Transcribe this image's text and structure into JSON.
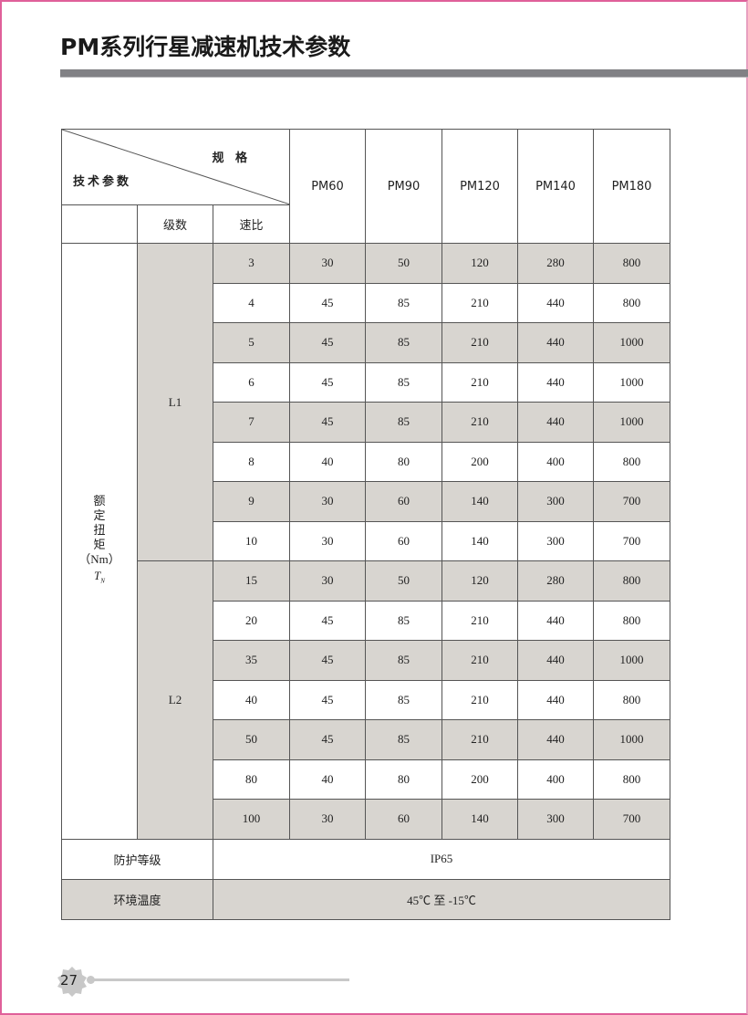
{
  "page_title": "PM系列行星减速机技术参数",
  "table": {
    "header_spec": "规 格",
    "header_param": "技术参数",
    "header_stage": "级数",
    "header_ratio": "速比",
    "models": [
      "PM60",
      "PM90",
      "PM120",
      "PM140",
      "PM180"
    ],
    "torque_label_chars": [
      "额",
      "定",
      "扭",
      "矩"
    ],
    "torque_unit": "（Nm）",
    "torque_symbol": "T",
    "torque_symbol_sub": "N",
    "groups": [
      {
        "stage": "L1",
        "rows": [
          {
            "ratio": "3",
            "values": [
              "30",
              "50",
              "120",
              "280",
              "800"
            ]
          },
          {
            "ratio": "4",
            "values": [
              "45",
              "85",
              "210",
              "440",
              "800"
            ]
          },
          {
            "ratio": "5",
            "values": [
              "45",
              "85",
              "210",
              "440",
              "1000"
            ]
          },
          {
            "ratio": "6",
            "values": [
              "45",
              "85",
              "210",
              "440",
              "1000"
            ]
          },
          {
            "ratio": "7",
            "values": [
              "45",
              "85",
              "210",
              "440",
              "1000"
            ]
          },
          {
            "ratio": "8",
            "values": [
              "40",
              "80",
              "200",
              "400",
              "800"
            ]
          },
          {
            "ratio": "9",
            "values": [
              "30",
              "60",
              "140",
              "300",
              "700"
            ]
          },
          {
            "ratio": "10",
            "values": [
              "30",
              "60",
              "140",
              "300",
              "700"
            ]
          }
        ]
      },
      {
        "stage": "L2",
        "rows": [
          {
            "ratio": "15",
            "values": [
              "30",
              "50",
              "120",
              "280",
              "800"
            ]
          },
          {
            "ratio": "20",
            "values": [
              "45",
              "85",
              "210",
              "440",
              "800"
            ]
          },
          {
            "ratio": "35",
            "values": [
              "45",
              "85",
              "210",
              "440",
              "1000"
            ]
          },
          {
            "ratio": "40",
            "values": [
              "45",
              "85",
              "210",
              "440",
              "800"
            ]
          },
          {
            "ratio": "50",
            "values": [
              "45",
              "85",
              "210",
              "440",
              "1000"
            ]
          },
          {
            "ratio": "80",
            "values": [
              "40",
              "80",
              "200",
              "400",
              "800"
            ]
          },
          {
            "ratio": "100",
            "values": [
              "30",
              "60",
              "140",
              "300",
              "700"
            ]
          }
        ]
      }
    ],
    "protection_label": "防护等级",
    "protection_value": "IP65",
    "temp_label": "环境温度",
    "temp_value": "45℃ 至 -15℃"
  },
  "footer": {
    "page_number": "27"
  },
  "colors": {
    "shade": "#d8d5d0",
    "title_bar": "#818185",
    "border": "#e0609a"
  }
}
